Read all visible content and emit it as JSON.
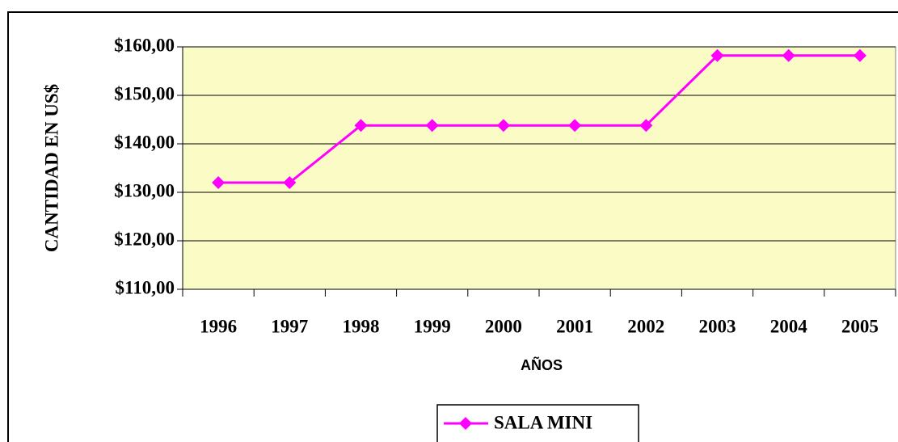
{
  "chart_data": {
    "type": "line",
    "x_label": "AÑOS",
    "y_label": "CANTIDAD EN US$",
    "categories": [
      "1996",
      "1997",
      "1998",
      "1999",
      "2000",
      "2001",
      "2002",
      "2003",
      "2004",
      "2005"
    ],
    "series": [
      {
        "name": "SALA MINI",
        "color": "#ff00ff",
        "values": [
          132,
          132,
          143.8,
          143.8,
          143.8,
          143.8,
          143.8,
          158.2,
          158.2,
          158.2
        ]
      }
    ],
    "ylim": [
      110,
      160
    ],
    "yticks": [
      {
        "value": 110,
        "label": "$110,00"
      },
      {
        "value": 120,
        "label": "$120,00"
      },
      {
        "value": 130,
        "label": "$130,00"
      },
      {
        "value": 140,
        "label": "$140,00"
      },
      {
        "value": 150,
        "label": "$150,00"
      },
      {
        "value": 160,
        "label": "$160,00"
      }
    ],
    "grid": true,
    "legend": "bottom",
    "plot_background": "#fbfbc6"
  }
}
